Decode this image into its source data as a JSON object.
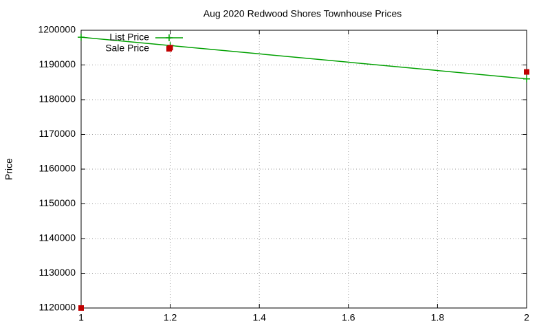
{
  "chart_data": {
    "type": "line",
    "title": "Aug 2020 Redwood Shores Townhouse Prices",
    "y_label": "Price",
    "x": [
      1,
      1.2,
      2
    ],
    "series": [
      {
        "name": "List Price",
        "color": "#00a000",
        "mode": "linespoints",
        "values": [
          1198000,
          1195600,
          1186000
        ]
      },
      {
        "name": "Sale Price",
        "color": "#c00000",
        "mode": "points",
        "values": [
          1120000,
          1195000,
          1188000
        ]
      }
    ],
    "xlim": [
      1,
      2
    ],
    "xticks": [
      1,
      1.2,
      1.4,
      1.6,
      1.8,
      2
    ],
    "ylim": [
      1120000,
      1200000
    ],
    "yticks": [
      1120000,
      1130000,
      1140000,
      1150000,
      1160000,
      1170000,
      1180000,
      1190000,
      1200000
    ],
    "grid": true,
    "legend": "top-left"
  }
}
